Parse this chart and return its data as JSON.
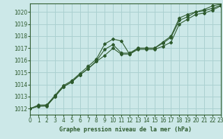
{
  "title": "Graphe pression niveau de la mer (hPa)",
  "bg_color": "#cce8e8",
  "grid_color": "#aad0d0",
  "line_color": "#2d5a2d",
  "marker_color": "#2d5a2d",
  "xlim": [
    0,
    23
  ],
  "ylim": [
    1011.5,
    1020.7
  ],
  "yticks": [
    1012,
    1013,
    1014,
    1015,
    1016,
    1017,
    1018,
    1019,
    1020
  ],
  "xticks": [
    0,
    1,
    2,
    3,
    4,
    5,
    6,
    7,
    8,
    9,
    10,
    11,
    12,
    13,
    14,
    15,
    16,
    17,
    18,
    19,
    20,
    21,
    22,
    23
  ],
  "line1_x": [
    0,
    1,
    2,
    3,
    4,
    5,
    6,
    7,
    8,
    9,
    10,
    11,
    12,
    13,
    14,
    15,
    16,
    17,
    18,
    19,
    20,
    21,
    22,
    23
  ],
  "line1_y": [
    1012.0,
    1012.3,
    1012.3,
    1013.1,
    1013.9,
    1014.3,
    1014.9,
    1015.5,
    1016.1,
    1017.35,
    1017.75,
    1017.6,
    1016.5,
    1017.0,
    1017.0,
    1017.0,
    1017.5,
    1018.0,
    1019.5,
    1019.8,
    1020.0,
    1020.2,
    1020.5,
    1020.65
  ],
  "line2_x": [
    0,
    1,
    2,
    3,
    4,
    5,
    6,
    7,
    8,
    9,
    10,
    11,
    12,
    13,
    14,
    15,
    16,
    17,
    18,
    19,
    20,
    21,
    22,
    23
  ],
  "line2_y": [
    1012.0,
    1012.2,
    1012.2,
    1013.0,
    1013.8,
    1014.2,
    1014.8,
    1015.3,
    1015.9,
    1016.4,
    1017.0,
    1016.5,
    1016.5,
    1016.9,
    1016.9,
    1016.9,
    1017.15,
    1017.5,
    1019.0,
    1019.4,
    1019.8,
    1019.9,
    1020.15,
    1020.5
  ],
  "line3_x": [
    0,
    1,
    2,
    3,
    4,
    5,
    6,
    7,
    8,
    9,
    10,
    11,
    12,
    13,
    14,
    15,
    16,
    17,
    18,
    19,
    20,
    21,
    22,
    23
  ],
  "line3_y": [
    1012.0,
    1012.2,
    1012.3,
    1013.0,
    1013.8,
    1014.2,
    1014.8,
    1015.3,
    1015.95,
    1016.9,
    1017.3,
    1016.6,
    1016.6,
    1017.0,
    1017.0,
    1017.0,
    1017.4,
    1017.9,
    1019.3,
    1019.6,
    1020.0,
    1020.1,
    1020.3,
    1020.55
  ]
}
